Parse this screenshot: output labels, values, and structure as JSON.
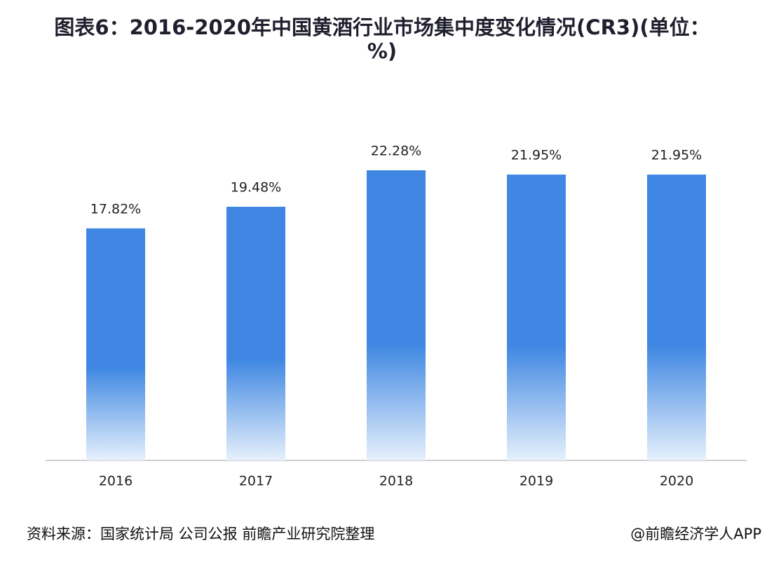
{
  "chart_data": {
    "type": "bar",
    "title": "图表6：2016-2020年中国黄酒行业市场集中度变化情况(CR3)(单位：%)",
    "categories": [
      "2016",
      "2017",
      "2018",
      "2019",
      "2020"
    ],
    "values": [
      17.82,
      19.48,
      22.28,
      21.95,
      21.95
    ],
    "value_labels": [
      "17.82%",
      "19.48%",
      "22.28%",
      "21.95%",
      "21.95%"
    ],
    "color": "#3f87e2",
    "source": "资料来源：国家统计局 公司公报 前瞻产业研究院整理",
    "credit": "@前瞻经济学人APP"
  }
}
